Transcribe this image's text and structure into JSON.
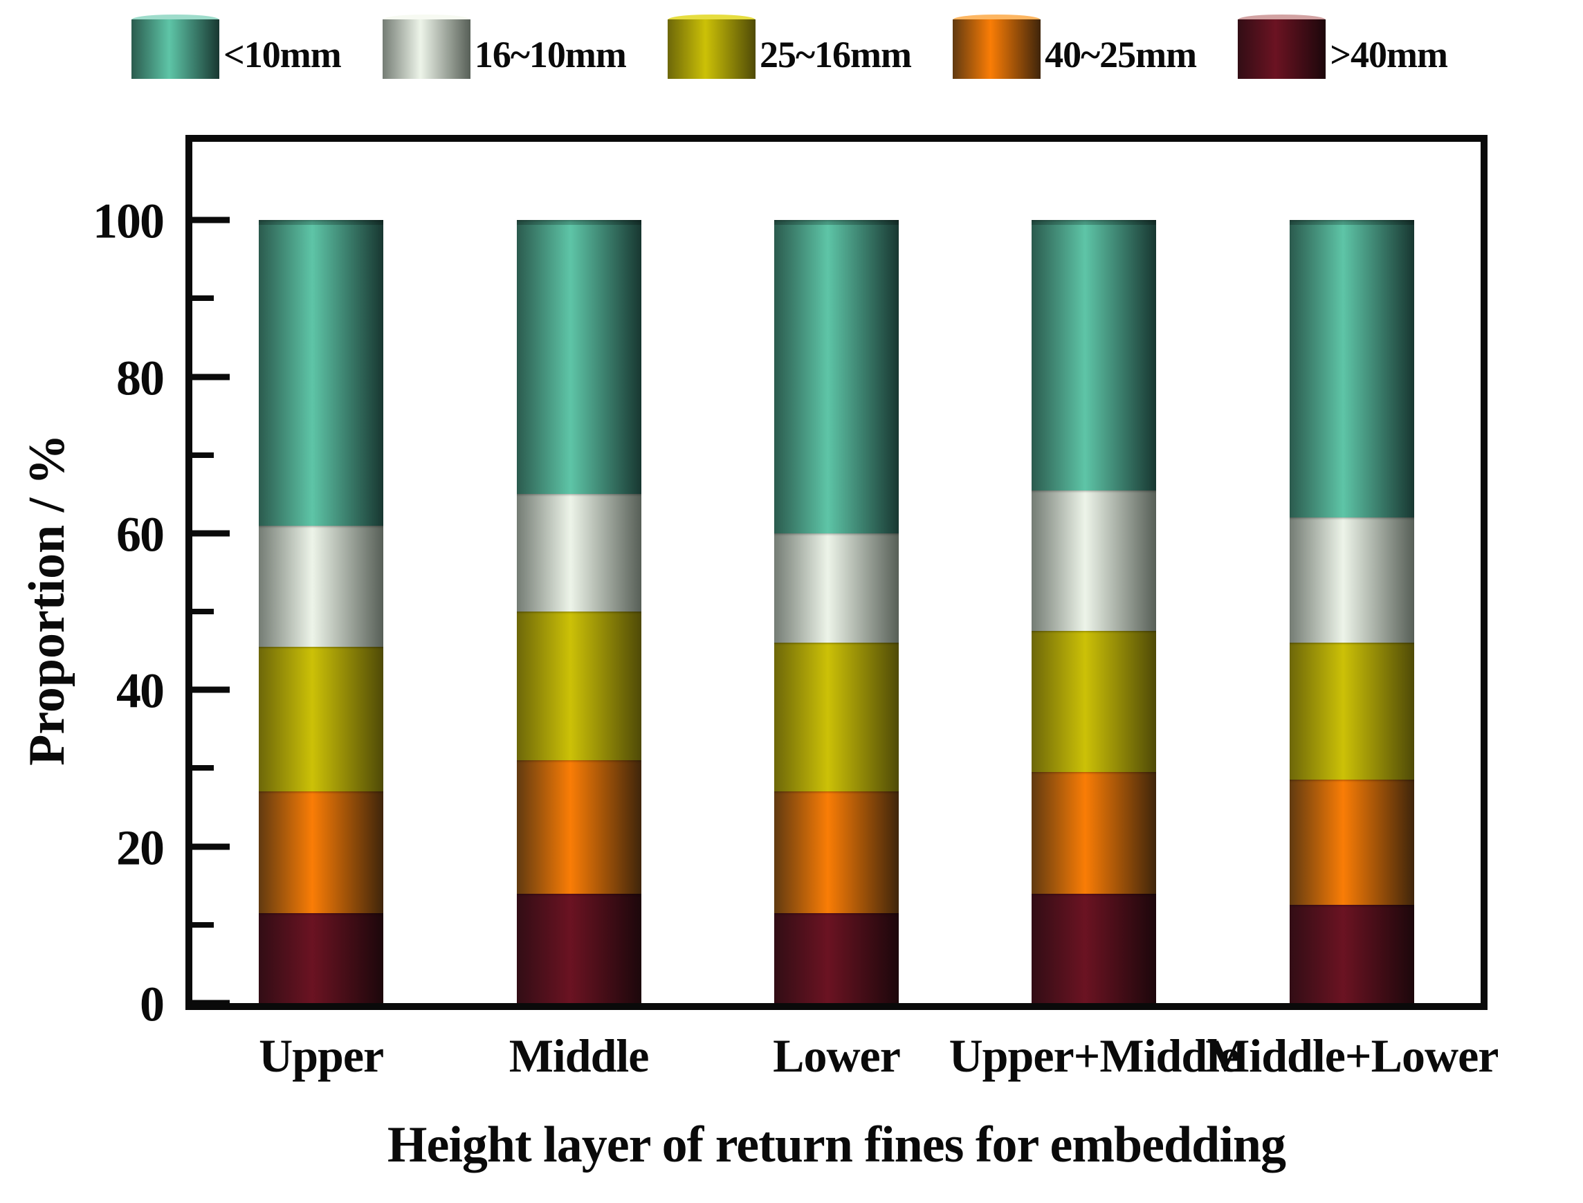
{
  "accent_colors": {
    "frame": "#0a0a0a",
    "background": "#ffffff"
  },
  "chart_data": {
    "type": "bar",
    "stacked": true,
    "orientation": "vertical",
    "title": "",
    "xlabel": "Height layer of return fines for embedding",
    "ylabel": "Proportion / %",
    "categories": [
      "Upper",
      "Middle",
      "Lower",
      "Upper+Middle",
      "Middle+Lower"
    ],
    "series": [
      {
        "name": "<10mm",
        "values": [
          39,
          35,
          40,
          34.5,
          38
        ],
        "gradient": [
          "#2b5b4e",
          "#5ec5a7",
          "#183731"
        ],
        "cap_color": "#9edccb"
      },
      {
        "name": "16~10mm",
        "values": [
          15.5,
          15,
          14,
          18,
          16
        ],
        "gradient": [
          "#747c74",
          "#edf4e9",
          "#575f57"
        ],
        "cap_color": "#f7faf2"
      },
      {
        "name": "25~16mm",
        "values": [
          18.5,
          19,
          19,
          18,
          17.5
        ],
        "gradient": [
          "#6d6709",
          "#ccc107",
          "#4f4a07"
        ],
        "cap_color": "#e6dd40"
      },
      {
        "name": "40~25mm",
        "values": [
          15.5,
          17,
          15.5,
          15.5,
          16
        ],
        "gradient": [
          "#613a10",
          "#fa7d06",
          "#3f250b"
        ],
        "cap_color": "#fdb662"
      },
      {
        "name": ">40mm",
        "values": [
          11.5,
          14,
          11.5,
          14,
          12.5
        ],
        "gradient": [
          "#320d15",
          "#6b1322",
          "#1c070b"
        ],
        "cap_color": "#d2a2a2"
      }
    ],
    "cumulative_tops_by_category": {
      "Upper": {
        ">40mm": 11.5,
        "40~25mm": 27,
        "25~16mm": 45.5,
        "16~10mm": 61,
        "<10mm": 100
      },
      "Middle": {
        ">40mm": 14,
        "40~25mm": 31,
        "25~16mm": 50,
        "16~10mm": 65,
        "<10mm": 100
      },
      "Lower": {
        ">40mm": 11.5,
        "40~25mm": 27,
        "25~16mm": 46,
        "16~10mm": 60,
        "<10mm": 100
      },
      "Upper+Middle": {
        ">40mm": 14,
        "40~25mm": 29.5,
        "25~16mm": 47.5,
        "16~10mm": 65.5,
        "<10mm": 100
      },
      "Middle+Lower": {
        ">40mm": 12.5,
        "40~25mm": 28.5,
        "25~16mm": 46,
        "16~10mm": 62,
        "<10mm": 100
      }
    },
    "ylim": [
      0,
      110
    ],
    "yticks": [
      0,
      20,
      40,
      60,
      80,
      100
    ],
    "yticks_minor": [
      10,
      30,
      50,
      70,
      90
    ],
    "grid": false,
    "legend_position": "top"
  }
}
